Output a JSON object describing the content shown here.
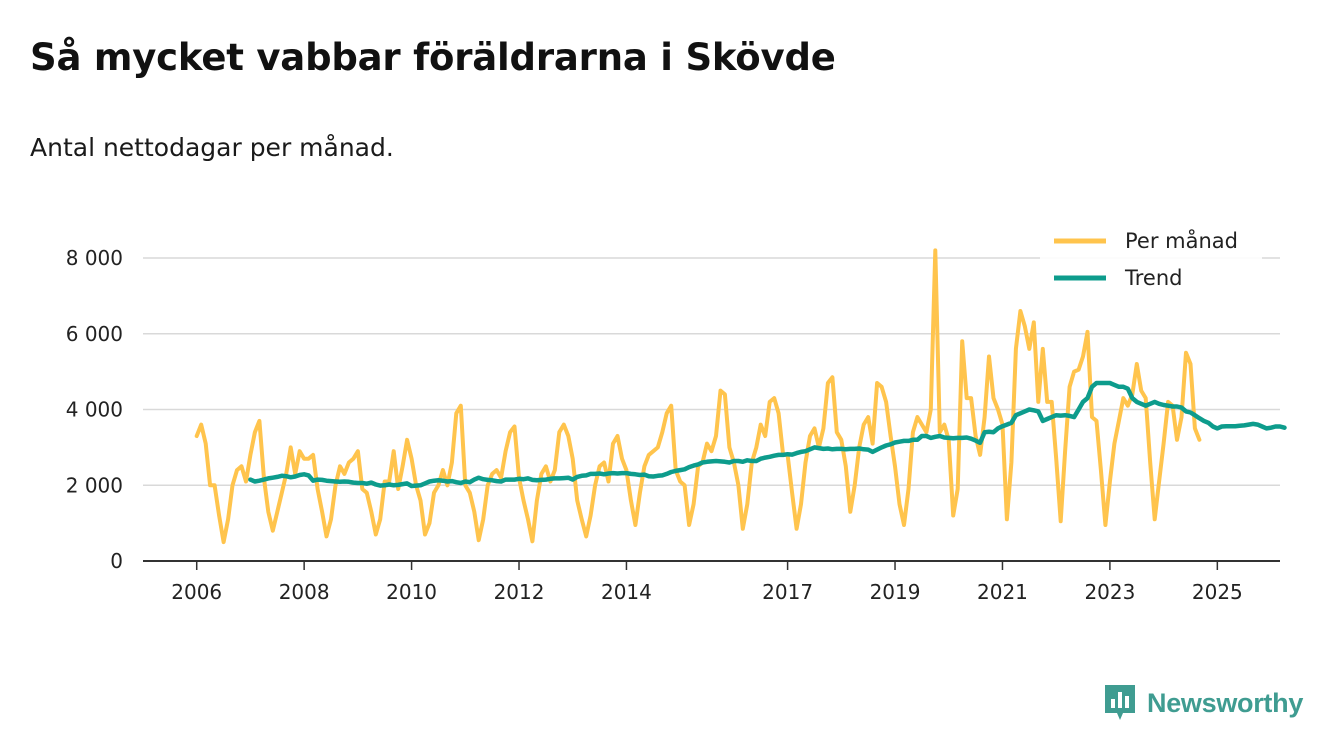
{
  "header": {
    "title": "Så mycket vabbar föräldrarna i Skövde",
    "subtitle": "Antal nettodagar per månad."
  },
  "brand": {
    "name": "Newsworthy",
    "color": "#3f9c91",
    "icon": "newsworthy-logo-icon"
  },
  "colors": {
    "monthly": "#ffc44d",
    "trend": "#0d9c8c",
    "grid": "#d9d9d9",
    "axis": "#333333"
  },
  "chart_data": {
    "type": "line",
    "title": "Så mycket vabbar föräldrarna i Skövde",
    "subtitle": "Antal nettodagar per månad.",
    "xlabel": "",
    "ylabel": "",
    "ylim": [
      0,
      8000
    ],
    "xlim": [
      "2005-01",
      "2026-03"
    ],
    "x_ticks": [
      {
        "date": "2006-01",
        "label": "2006"
      },
      {
        "date": "2008-01",
        "label": "2008"
      },
      {
        "date": "2010-01",
        "label": "2010"
      },
      {
        "date": "2012-01",
        "label": "2012"
      },
      {
        "date": "2014-01",
        "label": "2014"
      },
      {
        "date": "2017-01",
        "label": "2017"
      },
      {
        "date": "2019-01",
        "label": "2019"
      },
      {
        "date": "2021-01",
        "label": "2021"
      },
      {
        "date": "2023-01",
        "label": "2023"
      },
      {
        "date": "2025-01",
        "label": "2025"
      }
    ],
    "y_ticks": [
      {
        "value": 0,
        "label": "0"
      },
      {
        "value": 2000,
        "label": "2 000"
      },
      {
        "value": 4000,
        "label": "4 000"
      },
      {
        "value": 6000,
        "label": "6 000"
      },
      {
        "value": 8000,
        "label": "8 000"
      }
    ],
    "grid": true,
    "legend_position": "top-right",
    "series": [
      {
        "name": "Per månad",
        "color": "#ffc44d",
        "start": "2006-01",
        "values": [
          3300,
          3600,
          3100,
          2000,
          2000,
          1200,
          500,
          1100,
          2000,
          2400,
          2500,
          2100,
          2800,
          3400,
          3700,
          2200,
          1300,
          800,
          1300,
          1800,
          2300,
          3000,
          2300,
          2900,
          2700,
          2700,
          2800,
          1900,
          1300,
          650,
          1100,
          2000,
          2500,
          2300,
          2600,
          2700,
          2900,
          1900,
          1800,
          1300,
          700,
          1100,
          2100,
          2100,
          2900,
          1900,
          2500,
          3200,
          2700,
          2000,
          1600,
          700,
          1000,
          1800,
          2000,
          2400,
          2000,
          2600,
          3900,
          4100,
          2000,
          1800,
          1300,
          550,
          1100,
          2000,
          2300,
          2400,
          2200,
          2900,
          3400,
          3550,
          2200,
          1600,
          1100,
          520,
          1600,
          2300,
          2500,
          2100,
          2400,
          3400,
          3600,
          3300,
          2700,
          1600,
          1100,
          650,
          1200,
          2000,
          2500,
          2600,
          2100,
          3100,
          3300,
          2700,
          2400,
          1600,
          950,
          1800,
          2500,
          2800,
          2900,
          3000,
          3400,
          3900,
          4100,
          2400,
          2100,
          2000,
          950,
          1500,
          2500,
          2600,
          3100,
          2900,
          3300,
          4500,
          4400,
          3000,
          2600,
          2000,
          850,
          1500,
          2600,
          3000,
          3600,
          3300,
          4200,
          4300,
          3900,
          2800,
          2800,
          1800,
          850,
          1500,
          2600,
          3300,
          3500,
          3000,
          3500,
          4700,
          4850,
          3400,
          3200,
          2500,
          1300,
          2000,
          3000,
          3600,
          3800,
          3100,
          4700,
          4600,
          4200,
          3300,
          2500,
          1500,
          950,
          1900,
          3400,
          3800,
          3600,
          3400,
          4000,
          8200,
          3400,
          3600,
          3200,
          1200,
          1900,
          5800,
          4300,
          4300,
          3300,
          2800,
          3800,
          5400,
          4300,
          4000,
          3600,
          1100,
          2600,
          5600,
          6600,
          6200,
          5600,
          6300,
          4200,
          5600,
          4200,
          4200,
          2700,
          1050,
          2900,
          4600,
          5000,
          5050,
          5400,
          6050,
          3800,
          3700,
          2400,
          950,
          2100,
          3100,
          3700,
          4300,
          4100,
          4400,
          5200,
          4500,
          4300,
          2600,
          1100,
          2100,
          3100,
          4200,
          4100,
          3200,
          3800,
          5500,
          5200,
          3500,
          3200
        ]
      },
      {
        "name": "Trend",
        "color": "#0d9c8c",
        "start": "2007-01",
        "values": [
          2150,
          2100,
          2120,
          2150,
          2180,
          2200,
          2220,
          2250,
          2240,
          2210,
          2230,
          2270,
          2290,
          2260,
          2120,
          2150,
          2140,
          2120,
          2110,
          2100,
          2090,
          2100,
          2090,
          2070,
          2060,
          2060,
          2040,
          2070,
          2020,
          1990,
          2000,
          2020,
          2000,
          2010,
          2030,
          2050,
          1980,
          1990,
          2000,
          2050,
          2100,
          2120,
          2130,
          2120,
          2100,
          2110,
          2080,
          2060,
          2100,
          2080,
          2150,
          2200,
          2160,
          2140,
          2130,
          2110,
          2100,
          2150,
          2150,
          2150,
          2170,
          2160,
          2180,
          2140,
          2130,
          2140,
          2150,
          2170,
          2180,
          2180,
          2190,
          2200,
          2150,
          2220,
          2250,
          2260,
          2300,
          2300,
          2310,
          2290,
          2310,
          2320,
          2310,
          2320,
          2320,
          2300,
          2290,
          2270,
          2280,
          2240,
          2230,
          2250,
          2260,
          2300,
          2350,
          2380,
          2400,
          2420,
          2480,
          2520,
          2550,
          2600,
          2620,
          2630,
          2640,
          2630,
          2620,
          2600,
          2640,
          2640,
          2620,
          2660,
          2640,
          2640,
          2700,
          2730,
          2750,
          2780,
          2800,
          2800,
          2820,
          2810,
          2850,
          2880,
          2900,
          2950,
          3000,
          2980,
          2960,
          2970,
          2950,
          2960,
          2960,
          2950,
          2960,
          2960,
          2970,
          2950,
          2940,
          2880,
          2940,
          3000,
          3050,
          3080,
          3130,
          3150,
          3170,
          3170,
          3200,
          3200,
          3300,
          3300,
          3250,
          3280,
          3300,
          3260,
          3250,
          3240,
          3250,
          3250,
          3260,
          3230,
          3180,
          3120,
          3400,
          3410,
          3400,
          3500,
          3560,
          3600,
          3650,
          3850,
          3900,
          3950,
          4000,
          3980,
          3950,
          3700,
          3750,
          3800,
          3850,
          3840,
          3850,
          3830,
          3800,
          4000,
          4200,
          4300,
          4600,
          4700,
          4700,
          4700,
          4700,
          4650,
          4600,
          4600,
          4550,
          4300,
          4200,
          4150,
          4100,
          4150,
          4200,
          4150,
          4120,
          4100,
          4080,
          4080,
          4050,
          3950,
          3920,
          3850,
          3770,
          3700,
          3650,
          3550,
          3500,
          3550,
          3560,
          3560,
          3560,
          3570,
          3580,
          3600,
          3620,
          3600,
          3550,
          3500,
          3520,
          3550,
          3550,
          3520
        ]
      }
    ]
  }
}
